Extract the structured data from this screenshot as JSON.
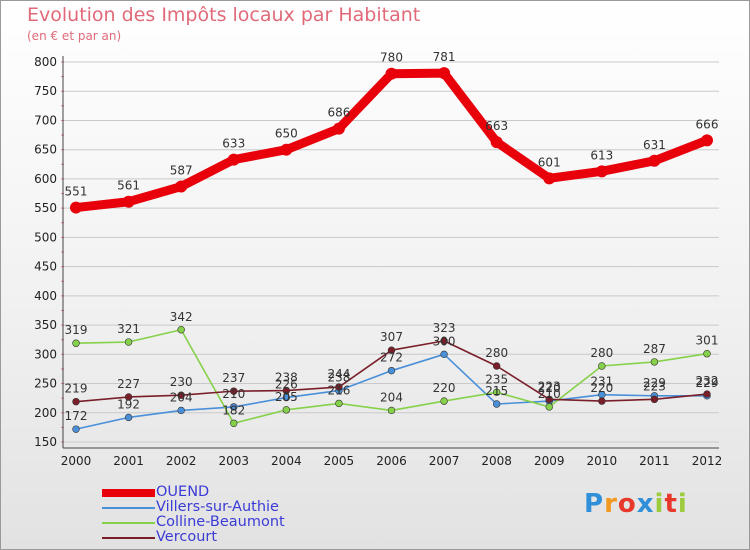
{
  "header": {
    "title": "Evolution des Impôts locaux par Habitant",
    "subtitle": "(en € et par an)"
  },
  "brand": {
    "letters": [
      "P",
      "r",
      "o",
      "x",
      "i",
      "t",
      "i"
    ],
    "colors": [
      "#2f8fd8",
      "#f29a1f",
      "#e8372b",
      "#2f8fd8",
      "#9ccc3c",
      "#e8372b",
      "#9ccc3c"
    ]
  },
  "colors": {
    "title": "#e06a79",
    "axis_text": "#222222",
    "grid": "#c9c9c9",
    "legend_text": "#3b3bd6"
  },
  "chart_data": {
    "type": "line",
    "title": "Evolution des Impôts locaux par Habitant",
    "subtitle": "(en € et par an)",
    "x": [
      "2000",
      "2001",
      "2002",
      "2003",
      "2004",
      "2005",
      "2006",
      "2007",
      "2008",
      "2009",
      "2010",
      "2011",
      "2012"
    ],
    "ylim": [
      150,
      800
    ],
    "yticks": [
      150,
      200,
      250,
      300,
      350,
      400,
      450,
      500,
      550,
      600,
      650,
      700,
      750,
      800
    ],
    "grid": true,
    "legend_position": "bottom-left",
    "series": [
      {
        "name": "OUEND",
        "color": "#e8000b",
        "emphasis": true,
        "values": [
          551,
          561,
          587,
          633,
          650,
          686,
          780,
          781,
          663,
          601,
          613,
          631,
          666
        ],
        "labels": [
          "551",
          "561",
          "587",
          "633",
          "650",
          "686",
          "780",
          "781",
          "663",
          "601",
          "613",
          "631",
          "666"
        ]
      },
      {
        "name": "Villers-sur-Authie",
        "color": "#4a90d9",
        "values": [
          172,
          192,
          204,
          210,
          226,
          238,
          272,
          300,
          215,
          220,
          231,
          229,
          229
        ],
        "labels": [
          "172",
          "192",
          "204",
          "210",
          "226",
          "238",
          "272",
          "300",
          "215",
          "220",
          "231",
          "229",
          "229"
        ]
      },
      {
        "name": "Colline-Beaumont",
        "color": "#86d14a",
        "values": [
          319,
          321,
          342,
          182,
          205,
          216,
          204,
          220,
          235,
          210,
          280,
          287,
          301
        ],
        "labels": [
          "319",
          "321",
          "342",
          "182",
          "205",
          "216",
          "204",
          "220",
          "235",
          "210",
          "280",
          "287",
          "301"
        ]
      },
      {
        "name": "Vercourt",
        "color": "#7a1f2a",
        "values": [
          219,
          227,
          230,
          237,
          238,
          244,
          307,
          323,
          280,
          223,
          220,
          223,
          232
        ],
        "labels": [
          "219",
          "227",
          "230",
          "237",
          "238",
          "244",
          "307",
          "323",
          "280",
          "223",
          "220",
          "223",
          "232"
        ]
      }
    ]
  }
}
